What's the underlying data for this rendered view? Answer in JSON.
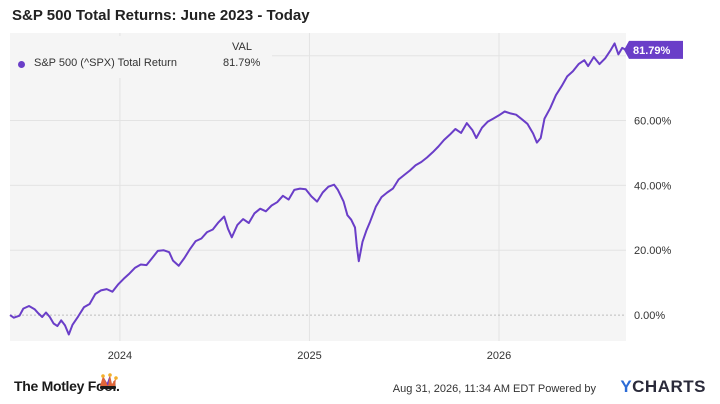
{
  "title": "S&P 500 Total Returns: June 2023 - Today",
  "legend": {
    "header": "VAL",
    "series_name": "S&P 500 (^SPX) Total Return",
    "series_value": "81.79%"
  },
  "end_label": "81.79%",
  "footer": {
    "brand": "The Motley Fool.",
    "timestamp": "Aug 31, 2026, 11:34 AM EDT Powered by",
    "ycharts_y": "Y",
    "ycharts_rest": "CHARTS"
  },
  "colors": {
    "series": "#6a3ec8",
    "grid": "#e3e3e3",
    "background": "#f5f5f5"
  },
  "chart_data": {
    "type": "line",
    "title": "S&P 500 Total Returns: June 2023 - Today",
    "x_ticks": [
      {
        "label": "2024",
        "t": 2024.0
      },
      {
        "label": "2025",
        "t": 2025.0
      },
      {
        "label": "2026",
        "t": 2026.0
      }
    ],
    "y_ticks": [
      {
        "label": "0.00%",
        "v": 0
      },
      {
        "label": "20.00%",
        "v": 20
      },
      {
        "label": "40.00%",
        "v": 40
      },
      {
        "label": "60.00%",
        "v": 60
      }
    ],
    "xlim": [
      2023.42,
      2026.67
    ],
    "ylim": [
      -8,
      87
    ],
    "grid": true,
    "legend_position": "top-left",
    "series": [
      {
        "name": "S&P 500 (^SPX) Total Return",
        "color": "#6a3ec8",
        "final_value": 81.79,
        "points": [
          [
            2023.42,
            0.0
          ],
          [
            2023.44,
            -0.8
          ],
          [
            2023.47,
            -0.2
          ],
          [
            2023.49,
            2.0
          ],
          [
            2023.52,
            2.8
          ],
          [
            2023.55,
            1.8
          ],
          [
            2023.57,
            0.5
          ],
          [
            2023.59,
            -0.6
          ],
          [
            2023.61,
            0.8
          ],
          [
            2023.63,
            -0.6
          ],
          [
            2023.65,
            -2.6
          ],
          [
            2023.67,
            -3.4
          ],
          [
            2023.69,
            -1.6
          ],
          [
            2023.71,
            -3.2
          ],
          [
            2023.73,
            -6.0
          ],
          [
            2023.75,
            -3.0
          ],
          [
            2023.78,
            -0.4
          ],
          [
            2023.81,
            2.4
          ],
          [
            2023.84,
            3.4
          ],
          [
            2023.87,
            6.5
          ],
          [
            2023.9,
            7.6
          ],
          [
            2023.93,
            8.0
          ],
          [
            2023.96,
            7.2
          ],
          [
            2023.99,
            9.4
          ],
          [
            2024.02,
            11.2
          ],
          [
            2024.05,
            12.8
          ],
          [
            2024.08,
            14.6
          ],
          [
            2024.11,
            15.6
          ],
          [
            2024.14,
            15.4
          ],
          [
            2024.17,
            17.6
          ],
          [
            2024.2,
            19.8
          ],
          [
            2024.23,
            20.0
          ],
          [
            2024.26,
            19.4
          ],
          [
            2024.28,
            16.8
          ],
          [
            2024.31,
            15.2
          ],
          [
            2024.34,
            17.6
          ],
          [
            2024.37,
            20.4
          ],
          [
            2024.4,
            22.8
          ],
          [
            2024.43,
            23.6
          ],
          [
            2024.46,
            25.6
          ],
          [
            2024.49,
            26.4
          ],
          [
            2024.52,
            28.6
          ],
          [
            2024.55,
            30.4
          ],
          [
            2024.57,
            26.6
          ],
          [
            2024.59,
            24.0
          ],
          [
            2024.62,
            27.8
          ],
          [
            2024.65,
            29.6
          ],
          [
            2024.68,
            28.4
          ],
          [
            2024.71,
            31.4
          ],
          [
            2024.74,
            32.8
          ],
          [
            2024.77,
            32.0
          ],
          [
            2024.8,
            33.8
          ],
          [
            2024.83,
            34.8
          ],
          [
            2024.86,
            36.8
          ],
          [
            2024.89,
            35.6
          ],
          [
            2024.92,
            38.6
          ],
          [
            2024.95,
            39.0
          ],
          [
            2024.98,
            38.8
          ],
          [
            2025.01,
            36.6
          ],
          [
            2025.04,
            35.0
          ],
          [
            2025.07,
            37.8
          ],
          [
            2025.1,
            39.6
          ],
          [
            2025.13,
            40.2
          ],
          [
            2025.15,
            38.6
          ],
          [
            2025.18,
            35.0
          ],
          [
            2025.2,
            30.8
          ],
          [
            2025.22,
            29.4
          ],
          [
            2025.24,
            27.0
          ],
          [
            2025.25,
            21.0
          ],
          [
            2025.26,
            16.6
          ],
          [
            2025.28,
            22.6
          ],
          [
            2025.3,
            26.0
          ],
          [
            2025.32,
            28.8
          ],
          [
            2025.35,
            33.4
          ],
          [
            2025.38,
            36.4
          ],
          [
            2025.41,
            37.8
          ],
          [
            2025.44,
            39.0
          ],
          [
            2025.47,
            41.8
          ],
          [
            2025.5,
            43.2
          ],
          [
            2025.53,
            44.6
          ],
          [
            2025.56,
            46.2
          ],
          [
            2025.59,
            47.2
          ],
          [
            2025.62,
            48.6
          ],
          [
            2025.65,
            50.2
          ],
          [
            2025.68,
            52.0
          ],
          [
            2025.71,
            54.0
          ],
          [
            2025.74,
            55.6
          ],
          [
            2025.77,
            57.4
          ],
          [
            2025.8,
            56.2
          ],
          [
            2025.83,
            59.2
          ],
          [
            2025.86,
            57.0
          ],
          [
            2025.88,
            54.6
          ],
          [
            2025.91,
            57.8
          ],
          [
            2025.94,
            59.6
          ],
          [
            2025.97,
            60.6
          ],
          [
            2026.0,
            61.6
          ],
          [
            2026.03,
            62.8
          ],
          [
            2026.06,
            62.2
          ],
          [
            2026.09,
            61.8
          ],
          [
            2026.12,
            60.4
          ],
          [
            2026.15,
            59.0
          ],
          [
            2026.18,
            56.0
          ],
          [
            2026.2,
            53.2
          ],
          [
            2026.22,
            54.6
          ],
          [
            2026.24,
            60.6
          ],
          [
            2026.27,
            63.8
          ],
          [
            2026.3,
            67.8
          ],
          [
            2026.33,
            70.6
          ],
          [
            2026.36,
            73.6
          ],
          [
            2026.39,
            75.2
          ],
          [
            2026.42,
            77.4
          ],
          [
            2026.45,
            78.6
          ],
          [
            2026.47,
            76.8
          ],
          [
            2026.5,
            79.6
          ],
          [
            2026.53,
            77.4
          ],
          [
            2026.56,
            79.2
          ],
          [
            2026.59,
            81.8
          ],
          [
            2026.61,
            83.8
          ],
          [
            2026.63,
            80.4
          ],
          [
            2026.65,
            82.4
          ],
          [
            2026.67,
            81.79
          ]
        ]
      }
    ]
  }
}
